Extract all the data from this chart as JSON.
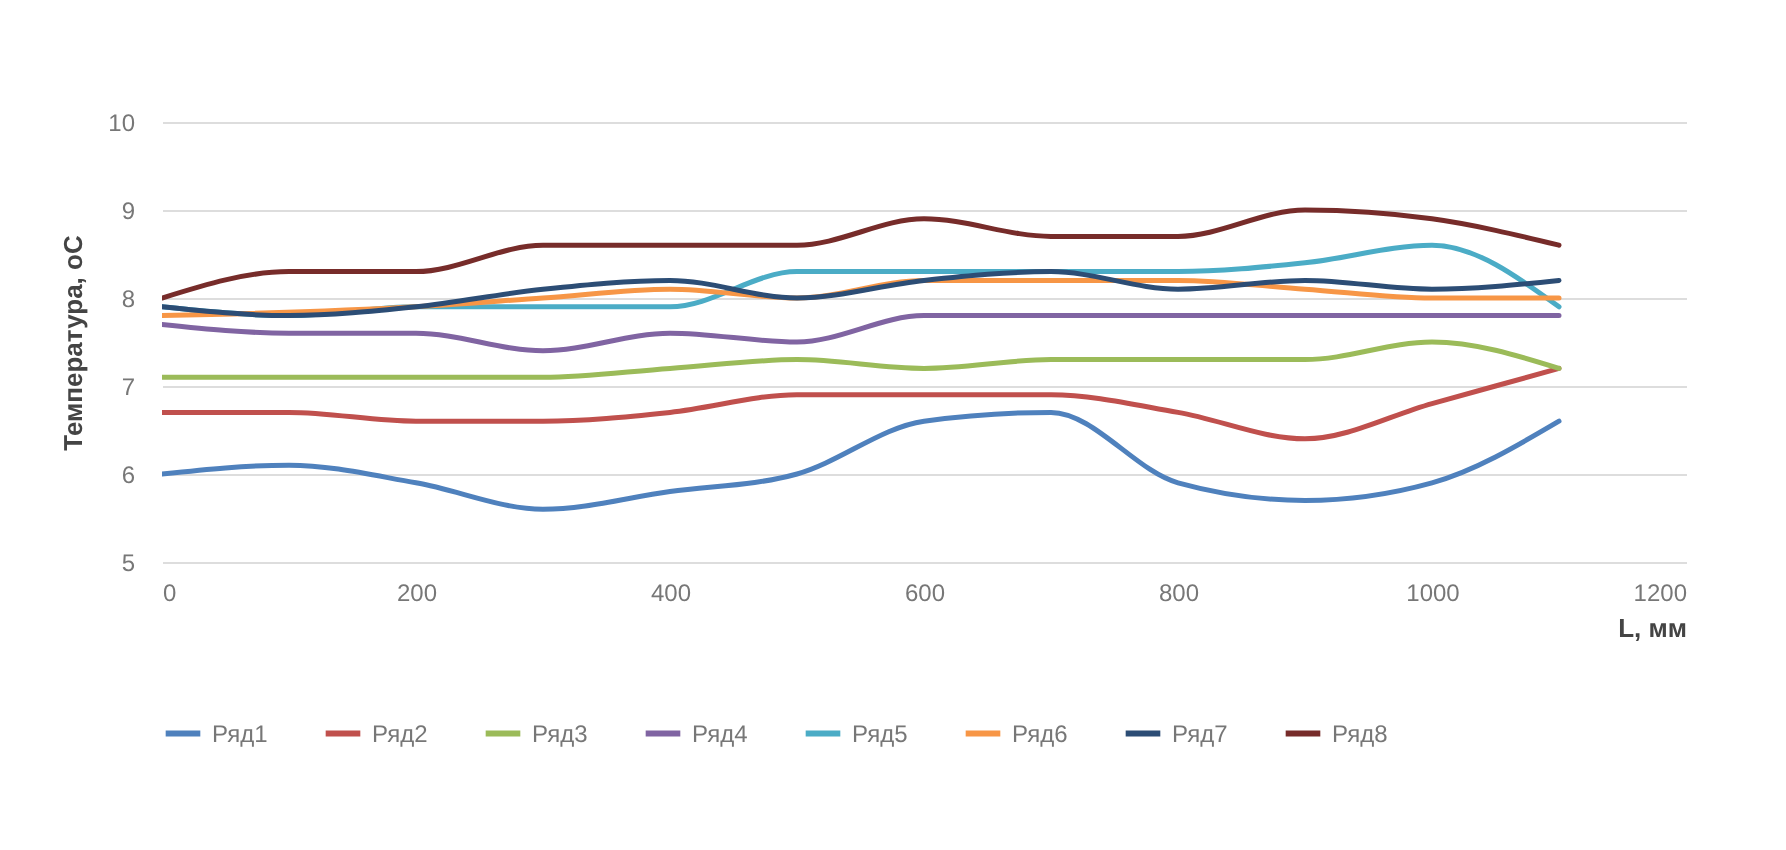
{
  "chart_data": {
    "type": "line",
    "xlabel": "L, мм",
    "ylabel": "Температура, оС",
    "x": [
      0,
      100,
      200,
      300,
      400,
      500,
      600,
      700,
      800,
      900,
      1000,
      1100
    ],
    "series": [
      {
        "name": "Ряд1",
        "color": "#4f81bd",
        "values": [
          6.0,
          6.1,
          5.9,
          5.6,
          5.8,
          6.0,
          6.6,
          6.7,
          5.9,
          5.7,
          5.9,
          6.6
        ]
      },
      {
        "name": "Ряд2",
        "color": "#c0504d",
        "values": [
          6.7,
          6.7,
          6.6,
          6.6,
          6.7,
          6.9,
          6.9,
          6.9,
          6.7,
          6.4,
          6.8,
          7.2
        ]
      },
      {
        "name": "Ряд3",
        "color": "#9bbb59",
        "values": [
          7.1,
          7.1,
          7.1,
          7.1,
          7.2,
          7.3,
          7.2,
          7.3,
          7.3,
          7.3,
          7.5,
          7.2
        ]
      },
      {
        "name": "Ряд4",
        "color": "#8064a2",
        "values": [
          7.7,
          7.6,
          7.6,
          7.4,
          7.6,
          7.5,
          7.8,
          7.8,
          7.8,
          7.8,
          7.8,
          7.8
        ]
      },
      {
        "name": "Ряд5",
        "color": "#4bacc6",
        "values": [
          7.9,
          7.8,
          7.9,
          7.9,
          7.9,
          8.3,
          8.3,
          null,
          8.3,
          8.4,
          8.6,
          7.9
        ]
      },
      {
        "name": "Ряд6",
        "color": "#f79646",
        "values": [
          7.8,
          null,
          7.9,
          8.0,
          8.1,
          8.0,
          8.2,
          8.2,
          8.2,
          8.1,
          8.0,
          8.0
        ]
      },
      {
        "name": "Ряд7",
        "color": "#2c4d75",
        "values": [
          7.9,
          7.8,
          7.9,
          8.1,
          8.2,
          8.0,
          8.2,
          8.3,
          8.1,
          8.2,
          8.1,
          8.2
        ]
      },
      {
        "name": "Ряд8",
        "color": "#772c2a",
        "values": [
          8.0,
          8.3,
          8.3,
          8.6,
          8.6,
          8.6,
          8.9,
          8.7,
          8.7,
          9.0,
          8.9,
          8.6
        ]
      }
    ],
    "xlim": [
      0,
      1200
    ],
    "xticks": [
      0,
      200,
      400,
      600,
      800,
      1000,
      1200
    ],
    "ylim": [
      5,
      10
    ],
    "yticks": [
      5,
      6,
      7,
      8,
      9,
      10
    ],
    "grid": "y",
    "legend": "bottom",
    "marker": "none",
    "line_style": "solid"
  }
}
